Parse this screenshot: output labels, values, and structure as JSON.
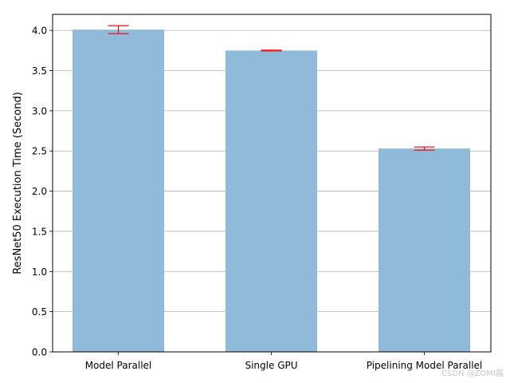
{
  "chart_data": {
    "type": "bar",
    "title": "",
    "xlabel": "",
    "ylabel": "ResNet50 Execution Time (Second)",
    "categories": [
      "Model Parallel",
      "Single GPU",
      "Pipelining Model Parallel"
    ],
    "values": [
      4.01,
      3.75,
      2.53
    ],
    "errors": [
      0.05,
      0.005,
      0.02
    ],
    "ylim": [
      0,
      4.2
    ],
    "yticks": [
      0.0,
      0.5,
      1.0,
      1.5,
      2.0,
      2.5,
      3.0,
      3.5,
      4.0
    ],
    "ytick_labels": [
      "0.0",
      "0.5",
      "1.0",
      "1.5",
      "2.0",
      "2.5",
      "3.0",
      "3.5",
      "4.0"
    ],
    "grid": "y",
    "bar_color": "#8fbad9",
    "error_color": "#ff0000",
    "legend": "none"
  },
  "watermark": {
    "text": "CSDN @ZOMI酱"
  }
}
